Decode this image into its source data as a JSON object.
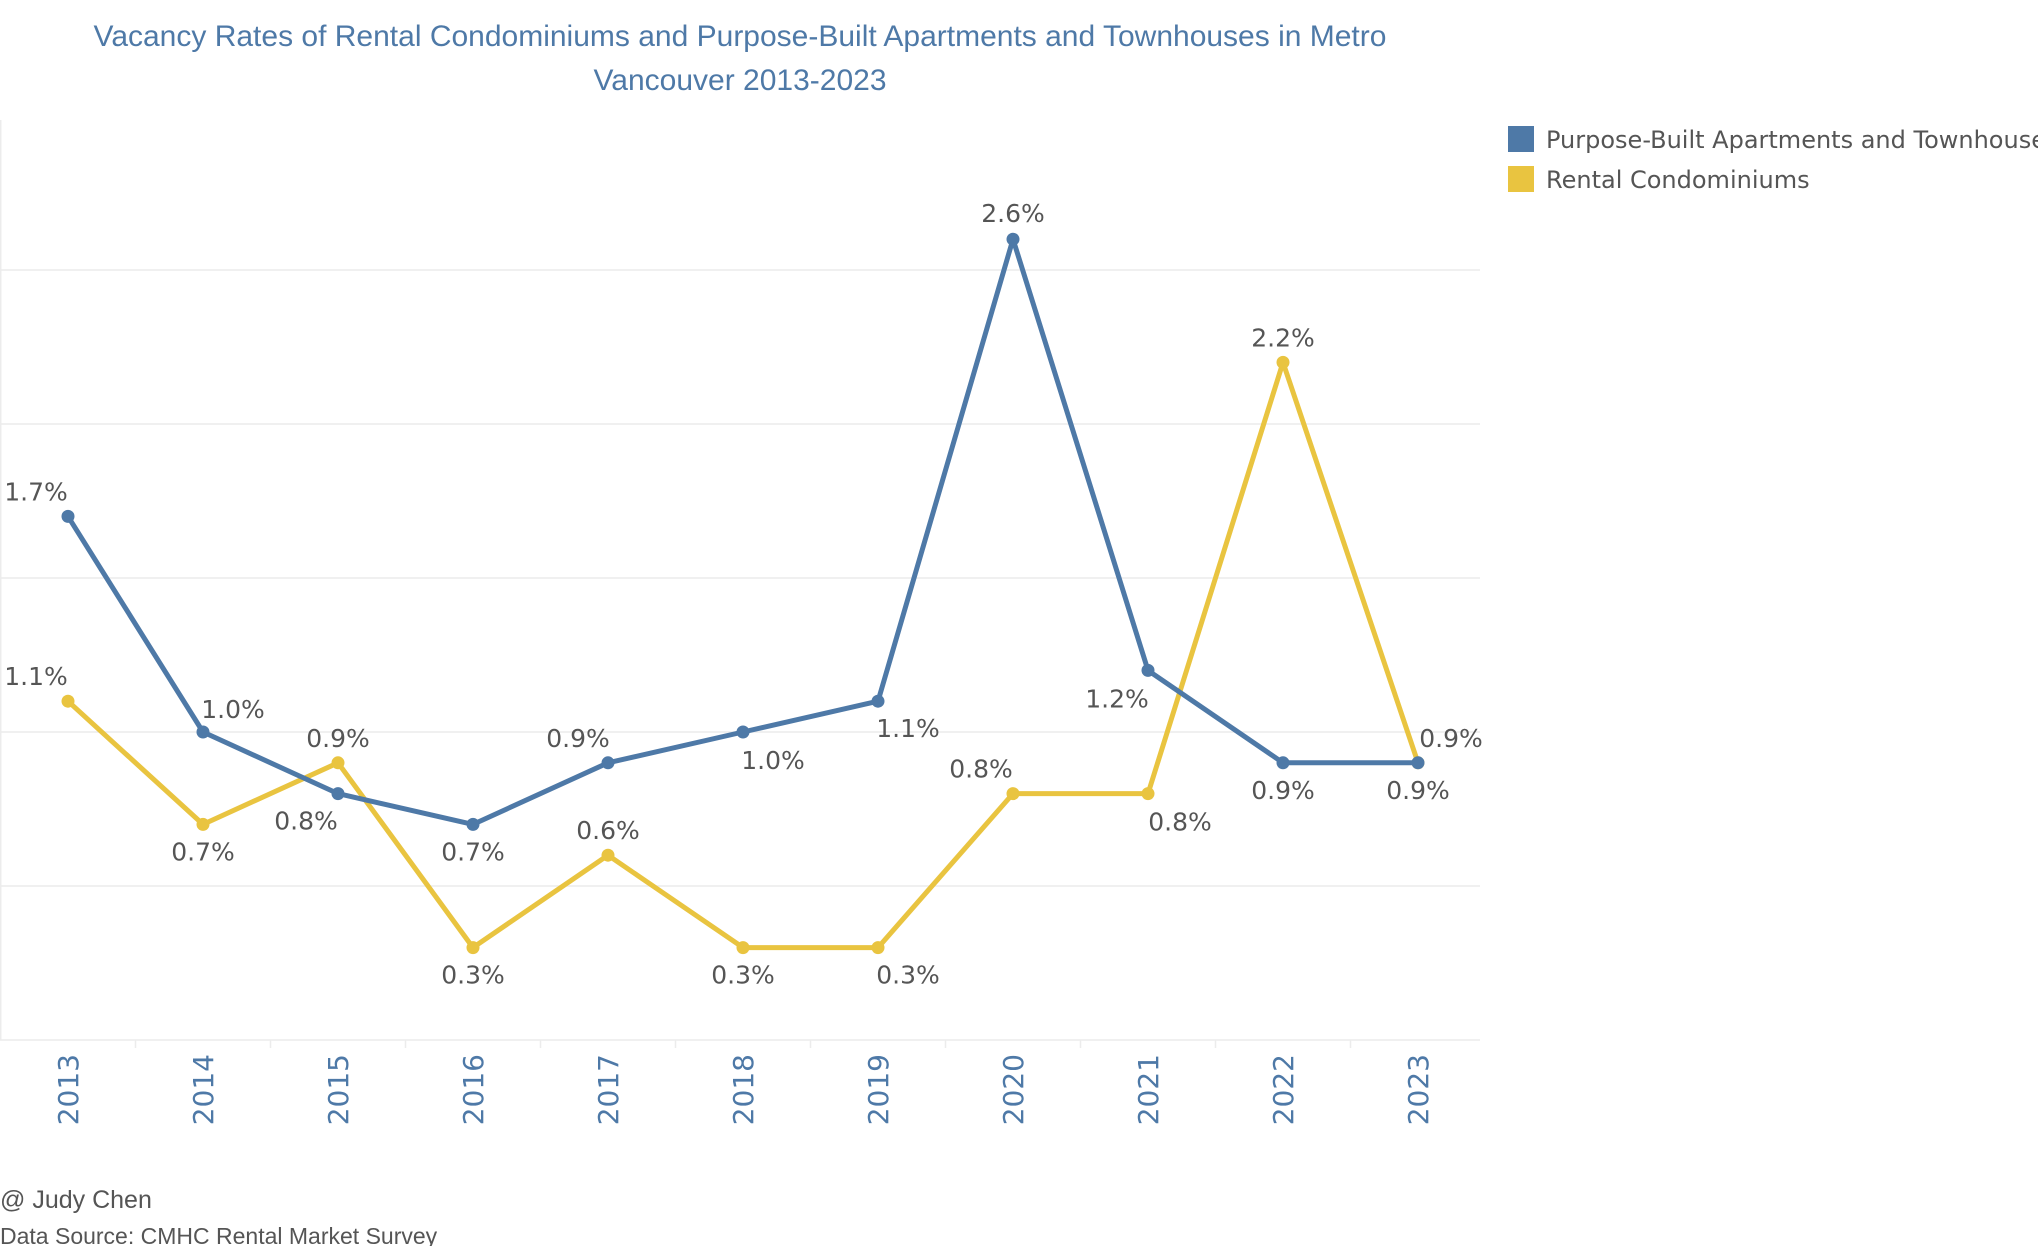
{
  "title_lines": [
    "Vacancy Rates of Rental Condominiums and Purpose-Built Apartments and Townhouses in Metro",
    "Vancouver 2013-2023"
  ],
  "chart_data": {
    "type": "line",
    "title": "Vacancy Rates of Rental Condominiums and Purpose-Built Apartments and Townhouses in Metro Vancouver 2013-2023",
    "x": [
      "2013",
      "2014",
      "2015",
      "2016",
      "2017",
      "2018",
      "2019",
      "2020",
      "2021",
      "2022",
      "2023"
    ],
    "ylim": [
      0,
      3.0
    ],
    "grid": true,
    "legend_position": "top-right",
    "series": [
      {
        "name": "Purpose-Built Apartments and Townhouses",
        "color": "#4e79a7",
        "values": [
          1.7,
          1.0,
          0.8,
          0.7,
          0.9,
          1.0,
          1.1,
          2.6,
          1.2,
          0.9,
          0.9
        ],
        "labels": [
          "1.7%",
          "1.0%",
          "0.8%",
          "0.7%",
          "0.9%",
          "1.0%",
          "1.1%",
          "2.6%",
          "1.2%",
          "0.9%",
          "0.9%"
        ]
      },
      {
        "name": "Rental Condominiums",
        "color": "#e9c440",
        "values": [
          1.1,
          0.7,
          0.9,
          0.3,
          0.6,
          0.3,
          0.3,
          0.8,
          0.8,
          2.2,
          0.9
        ],
        "labels": [
          "1.1%",
          "0.7%",
          "0.9%",
          "0.3%",
          "0.6%",
          "0.3%",
          "0.3%",
          "0.8%",
          "0.8%",
          "2.2%",
          "0.9%"
        ]
      }
    ]
  },
  "footer": {
    "credit": "@ Judy Chen",
    "source": "Data Source: CMHC Rental Market Survey"
  }
}
